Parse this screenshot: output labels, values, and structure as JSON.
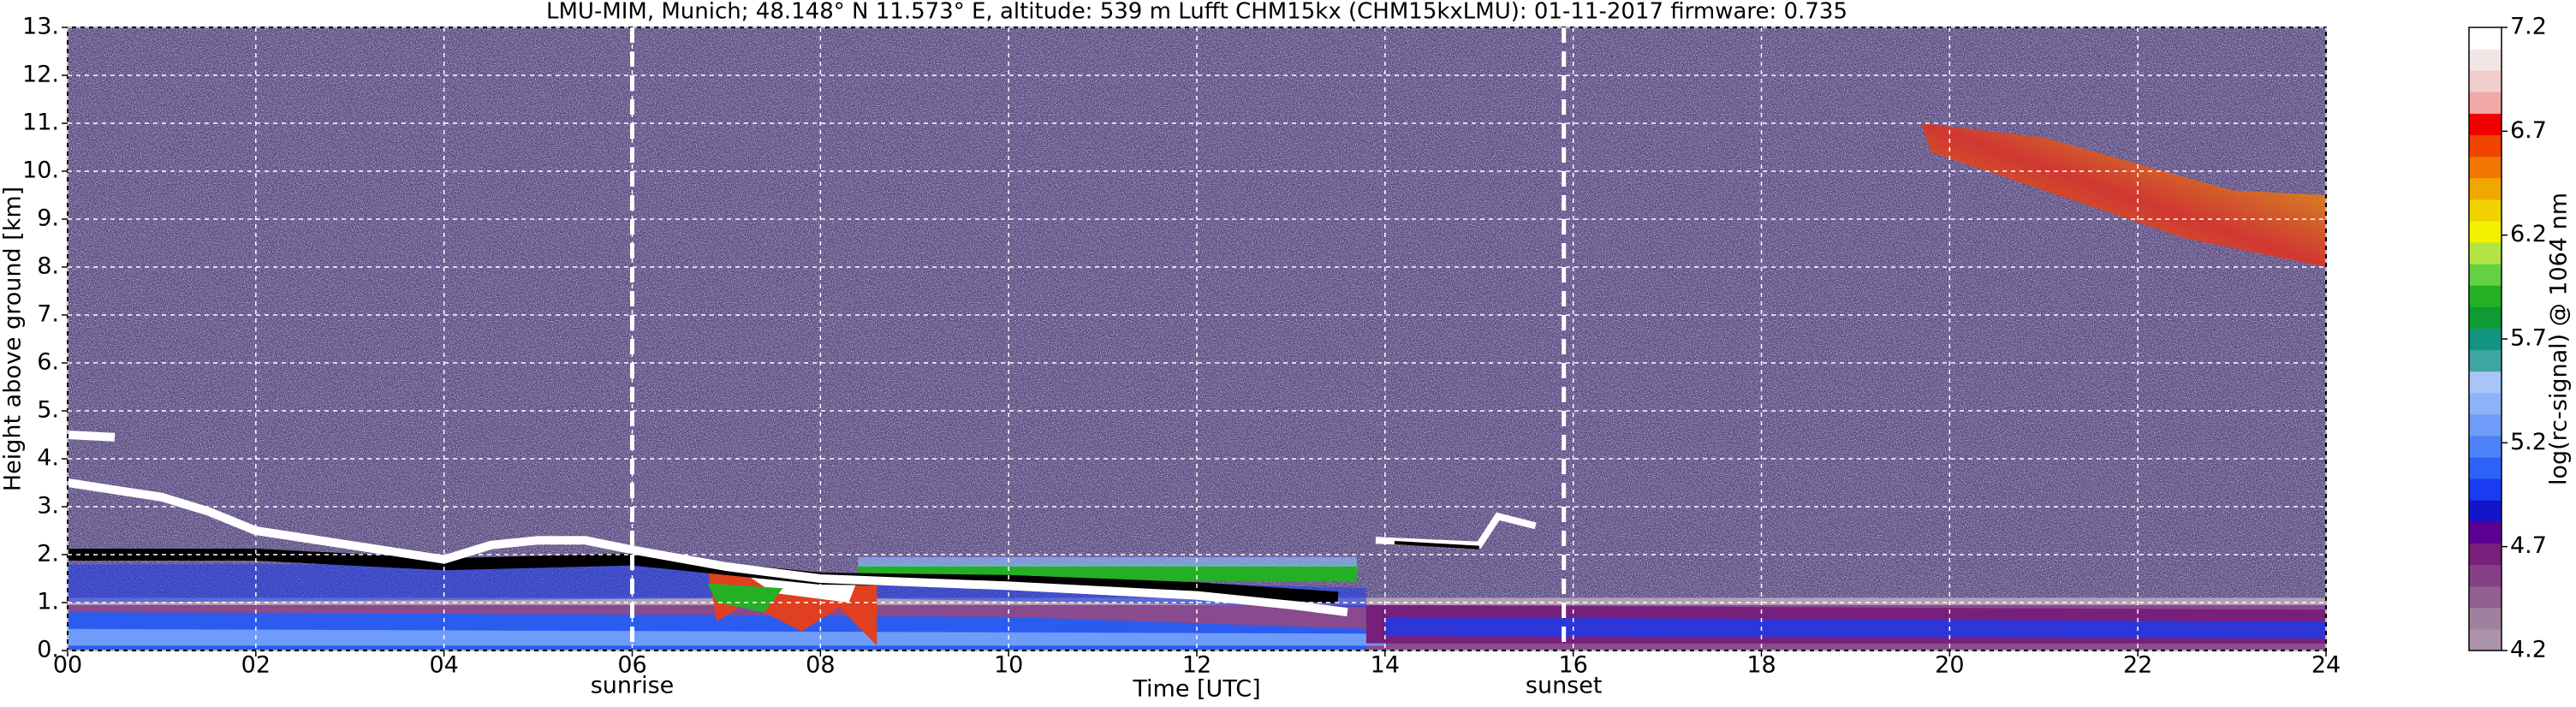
{
  "chart_data": {
    "type": "heatmap",
    "title": "LMU-MIM, Munich; 48.148° N 11.573° E, altitude: 539 m    Lufft CHM15kx (CHM15kxLMU): 01-11-2017    firmware: 0.735",
    "xlabel": "Time [UTC]",
    "ylabel": "Height above ground [km]",
    "xlim": [
      0,
      24
    ],
    "xticks": [
      {
        "value": 0,
        "label": "00"
      },
      {
        "value": 2,
        "label": "02"
      },
      {
        "value": 4,
        "label": "04"
      },
      {
        "value": 6,
        "label": "06"
      },
      {
        "value": 8,
        "label": "08"
      },
      10,
      12,
      14,
      16,
      18,
      20,
      22,
      24
    ],
    "ylim": [
      0,
      13
    ],
    "yticks": [
      {
        "value": 0,
        "label": "0."
      },
      {
        "value": 1,
        "label": "1."
      },
      {
        "value": 2,
        "label": "2."
      },
      {
        "value": 3,
        "label": "3."
      },
      {
        "value": 4,
        "label": "4."
      },
      {
        "value": 5,
        "label": "5."
      },
      {
        "value": 6,
        "label": "6."
      },
      {
        "value": 7,
        "label": "7."
      },
      {
        "value": 8,
        "label": "8."
      },
      {
        "value": 9,
        "label": "9."
      },
      {
        "value": 10,
        "label": "10."
      },
      {
        "value": 11,
        "label": "11."
      },
      {
        "value": 12,
        "label": "12."
      },
      {
        "value": 13,
        "label": "13."
      }
    ],
    "grid": true,
    "annotations": [
      {
        "x": 6,
        "label": "sunrise"
      },
      {
        "x": 15.9,
        "label": "sunset"
      }
    ],
    "colorbar": {
      "label": "log(rc-signal) @ 1064 nm",
      "lim": [
        4.2,
        7.2
      ],
      "ticks": [
        4.2,
        4.7,
        5.2,
        5.7,
        6.2,
        6.7,
        7.2
      ],
      "colors": [
        "#ab93aa",
        "#a0809f",
        "#915f90",
        "#853f87",
        "#781f7c",
        "#5c0093",
        "#1414c8",
        "#1a3cf0",
        "#2c62f6",
        "#4d82f8",
        "#6e9cf8",
        "#8db2f8",
        "#a8c4f8",
        "#3ea6a0",
        "#129480",
        "#0e9a34",
        "#24b024",
        "#64d044",
        "#b4e444",
        "#f0f000",
        "#f0d200",
        "#f0a800",
        "#f07800",
        "#f04400",
        "#f00000",
        "#f0a8a8",
        "#f0cccc",
        "#f0e6e6",
        "#ffffff"
      ]
    }
  }
}
